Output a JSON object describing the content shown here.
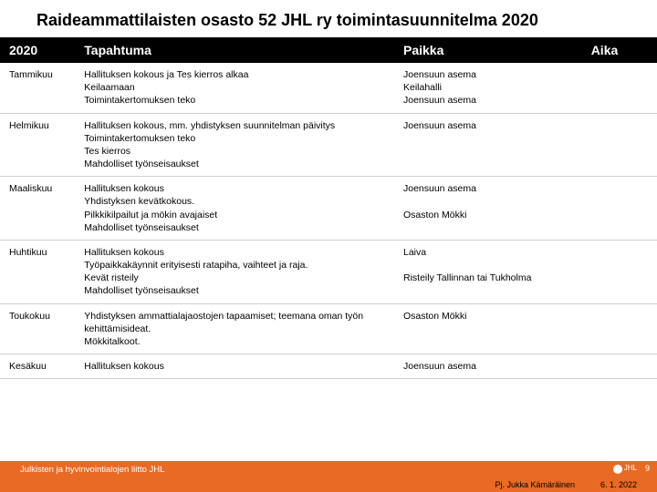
{
  "title": "Raideammattilaisten osasto 52 JHL ry toimintasuunnitelma 2020",
  "headers": {
    "month": "2020",
    "event": "Tapahtuma",
    "place": "Paikka",
    "time": "Aika"
  },
  "rows": [
    {
      "month": "Tammikuu",
      "event": "Hallituksen kokous ja Tes kierros alkaa\nKeilaamaan\nToimintakertomuksen teko",
      "place": "Joensuun asema\nKeilahalli\nJoensuun asema",
      "time": ""
    },
    {
      "month": "Helmikuu",
      "event": "Hallituksen kokous, mm. yhdistyksen suunnitelman päivitys\nToimintakertomuksen teko\nTes kierros\nMahdolliset työnseisaukset",
      "place": "Joensuun asema",
      "time": ""
    },
    {
      "month": "Maaliskuu",
      "event": "Hallituksen kokous\nYhdistyksen kevätkokous.\nPilkkikilpailut ja mökin avajaiset\nMahdolliset työnseisaukset",
      "place": "Joensuun asema\n\nOsaston Mökki",
      "time": ""
    },
    {
      "month": "Huhtikuu",
      "event": "Hallituksen kokous\nTyöpaikkakäynnit erityisesti ratapiha, vaihteet ja raja.\nKevät risteily\nMahdolliset työnseisaukset",
      "place": "Laiva\n\nRisteily Tallinnan tai Tukholma",
      "time": ""
    },
    {
      "month": "Toukokuu",
      "event": "Yhdistyksen ammattialajaostojen tapaamiset; teemana oman työn kehittämisideat.\nMökkitalkoot.",
      "place": "Osaston Mökki",
      "time": ""
    },
    {
      "month": "Kesäkuu",
      "event": "Hallituksen kokous",
      "place": "Joensuun asema",
      "time": ""
    }
  ],
  "footer": {
    "org": "Julkisten ja hyvinvointialojen liitto JHL",
    "jhl": "JHL",
    "page": "9",
    "author": "Pj. Jukka Kämäräinen",
    "date": "6. 1. 2022"
  }
}
